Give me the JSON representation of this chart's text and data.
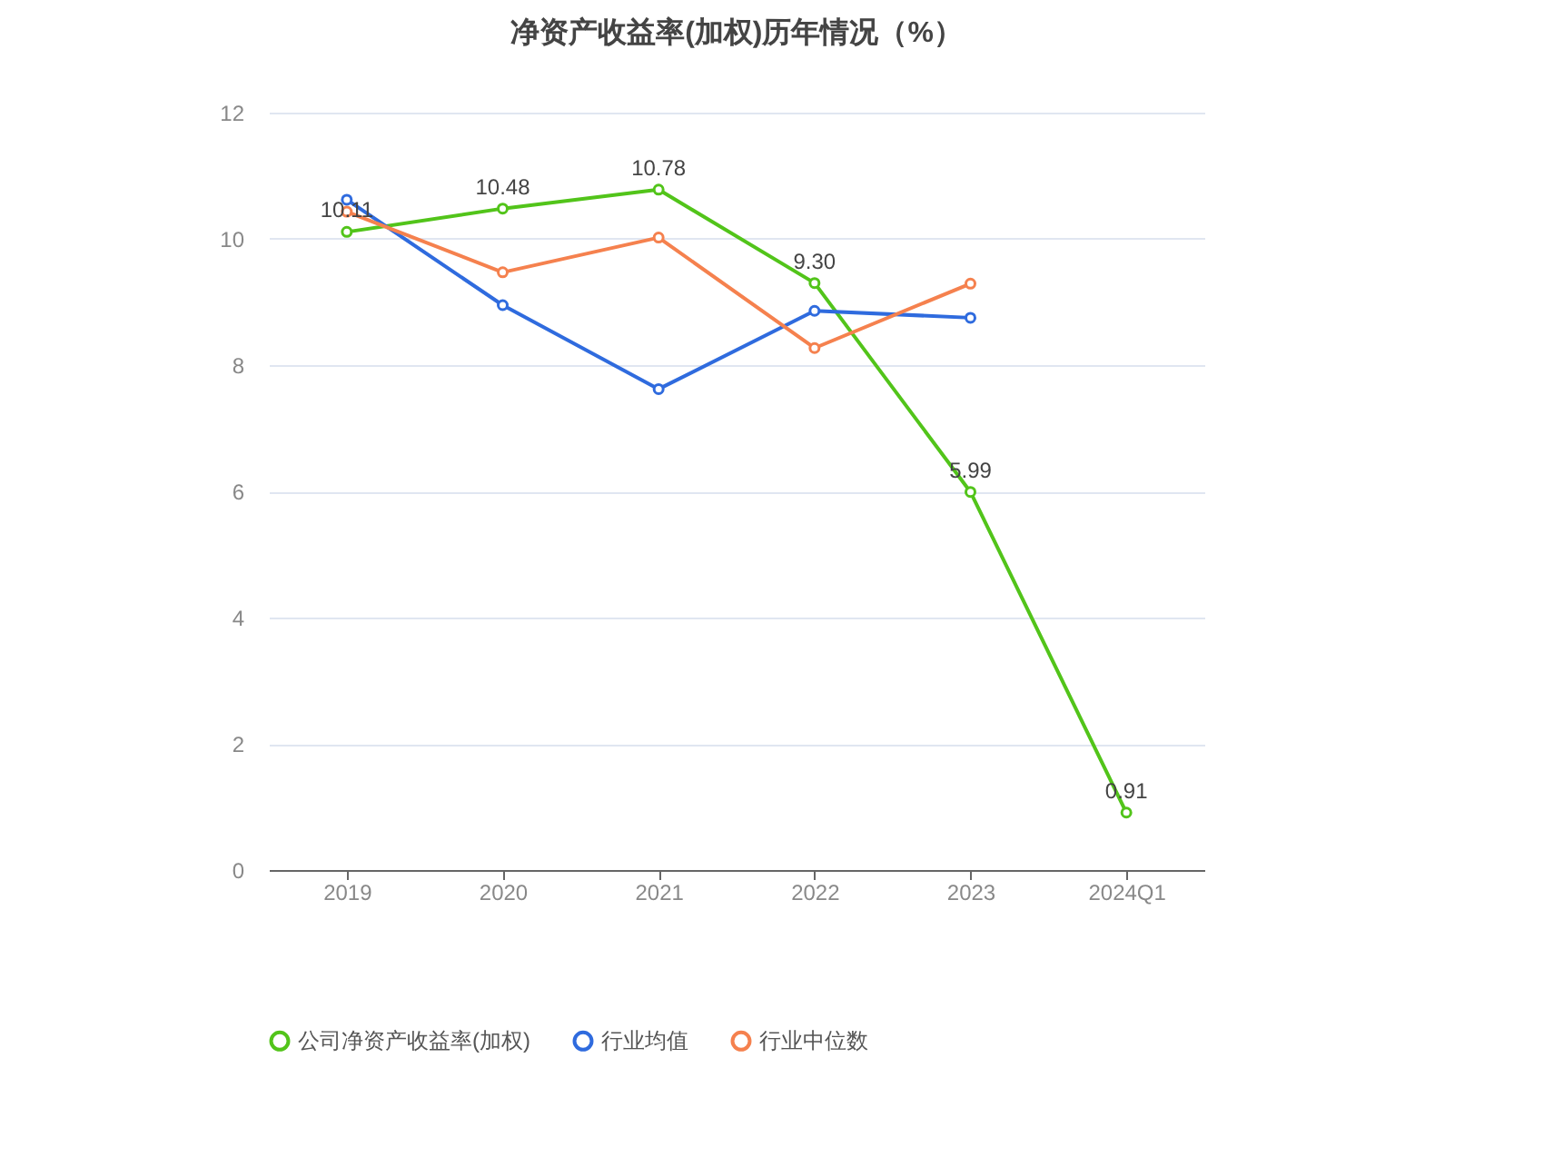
{
  "chart_data": {
    "type": "line",
    "title": "净资产收益率(加权)历年情况（%）",
    "categories": [
      "2019",
      "2020",
      "2021",
      "2022",
      "2023",
      "2024Q1"
    ],
    "series": [
      {
        "name": "公司净资产收益率(加权)",
        "color": "#52c41a",
        "values": [
          10.11,
          10.48,
          10.78,
          9.3,
          5.99,
          0.91
        ],
        "value_labels": [
          "10.11",
          "10.48",
          "10.78",
          "9.30",
          "5.99",
          "0.91"
        ]
      },
      {
        "name": "行业均值",
        "color": "#2f6bde",
        "values": [
          10.62,
          8.95,
          7.62,
          8.86,
          8.75,
          null
        ]
      },
      {
        "name": "行业中位数",
        "color": "#f5814e",
        "values": [
          10.43,
          9.47,
          10.02,
          8.27,
          9.29,
          null
        ]
      }
    ],
    "ylim": [
      0,
      12
    ],
    "yticks": [
      0,
      2,
      4,
      6,
      8,
      10,
      12
    ],
    "grid": "y",
    "legend": "bottom",
    "marker": "circle",
    "line_style": "solid"
  }
}
